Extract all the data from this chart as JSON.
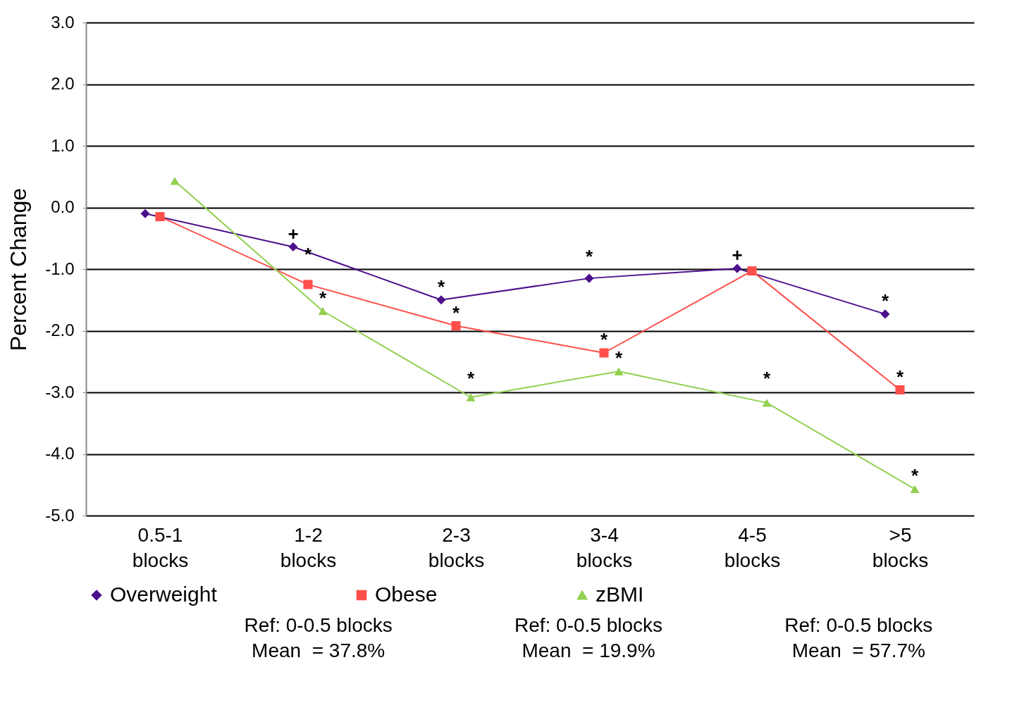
{
  "chart_data": {
    "type": "line",
    "ylabel": "Percent Change",
    "categories": [
      "0.5-1 blocks",
      "1-2 blocks",
      "2-3 blocks",
      "3-4 blocks",
      "4-5 blocks",
      ">5 blocks"
    ],
    "series": [
      {
        "name": "Overweight",
        "color": "#4b0f8c",
        "marker": "diamond",
        "values": [
          -0.1,
          -0.64,
          -1.5,
          -1.15,
          -0.99,
          -1.73
        ],
        "value_labels": [
          null,
          "+",
          "*",
          "*",
          "+",
          "*"
        ]
      },
      {
        "name": "Obese",
        "color": "#ff4f4a",
        "marker": "square",
        "values": [
          -0.15,
          -1.25,
          -1.92,
          -2.36,
          -1.03,
          -2.96
        ],
        "value_labels": [
          null,
          "*",
          "*",
          "*",
          null,
          "*"
        ]
      },
      {
        "name": "zBMI",
        "color": "#92d050",
        "marker": "triangle",
        "values": [
          0.43,
          -1.68,
          -3.08,
          -2.66,
          -3.17,
          -4.57
        ],
        "value_labels": [
          null,
          "*",
          "*",
          "*",
          "*",
          "*"
        ]
      }
    ],
    "ylim": [
      -5,
      3
    ],
    "yticks": [
      {
        "value": -5,
        "label": "-5.0"
      },
      {
        "value": -4,
        "label": "-4.0"
      },
      {
        "value": -3,
        "label": "-3.0"
      },
      {
        "value": -2,
        "label": "-2.0"
      },
      {
        "value": -1,
        "label": "-1.0"
      },
      {
        "value": 0,
        "label": "0.0"
      },
      {
        "value": 1,
        "label": "1.0"
      },
      {
        "value": 2,
        "label": "2.0"
      },
      {
        "value": 3,
        "label": "3.0"
      }
    ],
    "grid": "y",
    "legend": "bottom",
    "line_style": "solid",
    "annotations": [
      "Ref: 0-0.5 blocks\nMean  = 37.8%",
      "Ref: 0-0.5 blocks\nMean  = 19.9%",
      "Ref: 0-0.5 blocks\nMean  = 57.7%"
    ]
  }
}
